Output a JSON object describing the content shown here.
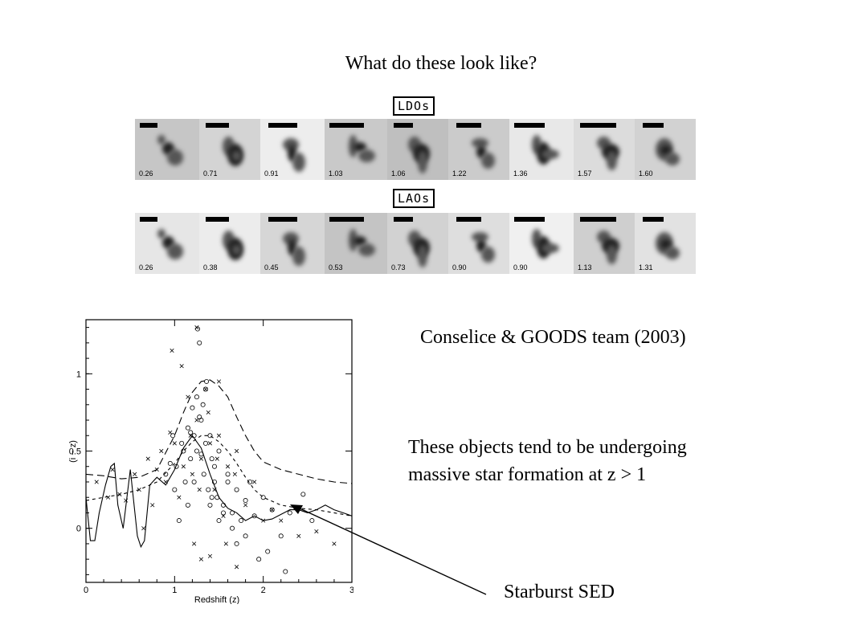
{
  "slide": {
    "title": "What do these look like?",
    "credit": "Conselice & GOODS team (2003)",
    "note_line1": "These objects tend to be undergoing",
    "note_line2": "massive star formation at z > 1",
    "callout": "Starburst SED"
  },
  "ldo": {
    "label": "LDOs",
    "redshifts": [
      "0.26",
      "0.71",
      "0.91",
      "1.03",
      "1.06",
      "1.22",
      "1.36",
      "1.57",
      "1.60"
    ]
  },
  "lao": {
    "label": "LAOs",
    "redshifts": [
      "0.26",
      "0.38",
      "0.45",
      "0.53",
      "0.73",
      "0.90",
      "0.90",
      "1.13",
      "1.31"
    ]
  },
  "chart_data": {
    "type": "scatter",
    "xlabel": "Redshift (z)",
    "ylabel": "(i − z)",
    "xlim": [
      0,
      3
    ],
    "ylim": [
      -0.35,
      1.35
    ],
    "xticks": [
      "0",
      "1",
      "2",
      "3"
    ],
    "yticks": [
      "0",
      "0.5",
      "1"
    ],
    "grid": false,
    "series": [
      {
        "marker": "circle",
        "x": [
          1.02,
          1.08,
          1.12,
          1.15,
          1.18,
          1.2,
          1.22,
          1.25,
          1.28,
          1.3,
          1.33,
          1.35,
          1.38,
          1.4,
          1.42,
          1.45,
          1.48,
          1.5,
          1.55,
          1.6,
          1.65,
          1.7,
          1.75,
          1.8,
          1.9,
          2.0,
          2.1,
          2.2,
          2.3,
          2.45,
          1.0,
          0.95,
          0.9,
          1.25,
          1.35,
          1.45,
          1.55,
          1.65,
          1.28,
          1.18,
          1.1,
          1.3,
          1.4,
          1.5,
          1.6,
          1.7,
          1.8,
          2.05,
          2.25,
          2.55,
          1.95,
          1.85,
          1.15,
          1.05,
          0.98,
          1.22,
          1.32,
          1.42,
          1.26,
          1.36
        ],
        "y": [
          0.4,
          0.55,
          0.3,
          0.65,
          0.45,
          0.78,
          0.6,
          0.5,
          1.2,
          0.7,
          0.35,
          0.55,
          0.25,
          0.6,
          0.45,
          0.3,
          0.2,
          0.5,
          0.15,
          0.3,
          0.1,
          0.25,
          0.05,
          0.18,
          0.08,
          0.2,
          0.12,
          -0.05,
          0.1,
          0.22,
          0.25,
          0.42,
          0.35,
          0.85,
          0.9,
          0.4,
          0.1,
          0.0,
          0.72,
          0.62,
          0.5,
          0.48,
          0.15,
          0.05,
          0.35,
          -0.1,
          -0.05,
          -0.15,
          -0.28,
          0.05,
          -0.2,
          0.3,
          0.15,
          0.05,
          0.6,
          0.3,
          0.8,
          0.2,
          1.29,
          0.95
        ]
      },
      {
        "marker": "cross",
        "x": [
          0.12,
          0.3,
          0.38,
          0.55,
          0.6,
          0.7,
          0.75,
          0.8,
          0.85,
          0.9,
          0.95,
          1.0,
          1.05,
          1.1,
          1.15,
          1.2,
          1.25,
          1.3,
          1.35,
          1.4,
          1.45,
          1.5,
          1.55,
          1.6,
          1.7,
          1.8,
          1.9,
          2.0,
          2.1,
          2.2,
          2.4,
          2.6,
          2.8,
          0.97,
          1.08,
          1.18,
          1.28,
          1.38,
          1.48,
          1.58,
          1.68,
          1.25,
          1.22,
          1.4,
          1.7,
          1.3,
          1.5,
          0.65,
          0.45,
          0.25
        ],
        "y": [
          0.3,
          0.38,
          0.22,
          0.35,
          0.25,
          0.45,
          0.15,
          0.38,
          0.5,
          0.3,
          0.62,
          0.55,
          0.2,
          0.4,
          0.85,
          0.35,
          0.7,
          0.45,
          0.9,
          0.55,
          0.25,
          0.6,
          0.08,
          0.4,
          0.5,
          0.15,
          0.3,
          0.05,
          0.12,
          0.05,
          -0.05,
          -0.02,
          -0.1,
          1.15,
          1.05,
          0.6,
          0.25,
          0.75,
          0.45,
          -0.1,
          0.35,
          1.3,
          -0.1,
          -0.18,
          -0.25,
          -0.2,
          0.95,
          0.0,
          0.18,
          0.2
        ]
      }
    ],
    "curves": [
      {
        "style": "solid",
        "x": [
          0,
          0.05,
          0.1,
          0.15,
          0.22,
          0.28,
          0.32,
          0.36,
          0.42,
          0.5,
          0.58,
          0.62,
          0.66,
          0.72,
          0.8,
          0.9,
          1.0,
          1.1,
          1.2,
          1.3,
          1.4,
          1.5,
          1.6,
          1.7,
          1.8,
          1.9,
          2.0,
          2.1,
          2.2,
          2.3,
          2.4,
          2.5,
          2.6,
          2.7,
          2.8,
          2.9,
          3.0
        ],
        "y": [
          0.2,
          -0.08,
          -0.08,
          0.1,
          0.28,
          0.4,
          0.42,
          0.15,
          0.0,
          0.38,
          -0.05,
          -0.12,
          -0.08,
          0.28,
          0.33,
          0.28,
          0.38,
          0.52,
          0.6,
          0.52,
          0.35,
          0.2,
          0.13,
          0.1,
          0.05,
          0.08,
          0.05,
          0.06,
          0.09,
          0.12,
          0.12,
          0.1,
          0.12,
          0.15,
          0.12,
          0.1,
          0.08
        ]
      },
      {
        "style": "long-dash",
        "x": [
          0,
          0.2,
          0.4,
          0.6,
          0.8,
          1.0,
          1.1,
          1.2,
          1.3,
          1.4,
          1.5,
          1.6,
          1.7,
          1.8,
          1.9,
          2.0,
          2.2,
          2.4,
          2.6,
          2.8,
          3.0
        ],
        "y": [
          0.35,
          0.34,
          0.32,
          0.33,
          0.38,
          0.6,
          0.75,
          0.88,
          0.95,
          0.96,
          0.92,
          0.85,
          0.72,
          0.6,
          0.5,
          0.43,
          0.38,
          0.35,
          0.32,
          0.3,
          0.29
        ]
      },
      {
        "style": "short-dash",
        "x": [
          0,
          0.2,
          0.4,
          0.6,
          0.8,
          1.0,
          1.1,
          1.2,
          1.3,
          1.4,
          1.5,
          1.6,
          1.7,
          1.8,
          1.9,
          2.0,
          2.2,
          2.4,
          2.6,
          2.8,
          3.0
        ],
        "y": [
          0.18,
          0.2,
          0.22,
          0.25,
          0.3,
          0.42,
          0.5,
          0.56,
          0.6,
          0.6,
          0.56,
          0.5,
          0.42,
          0.33,
          0.25,
          0.2,
          0.15,
          0.13,
          0.12,
          0.1,
          0.08
        ]
      }
    ],
    "annotation": "Starburst SED"
  }
}
